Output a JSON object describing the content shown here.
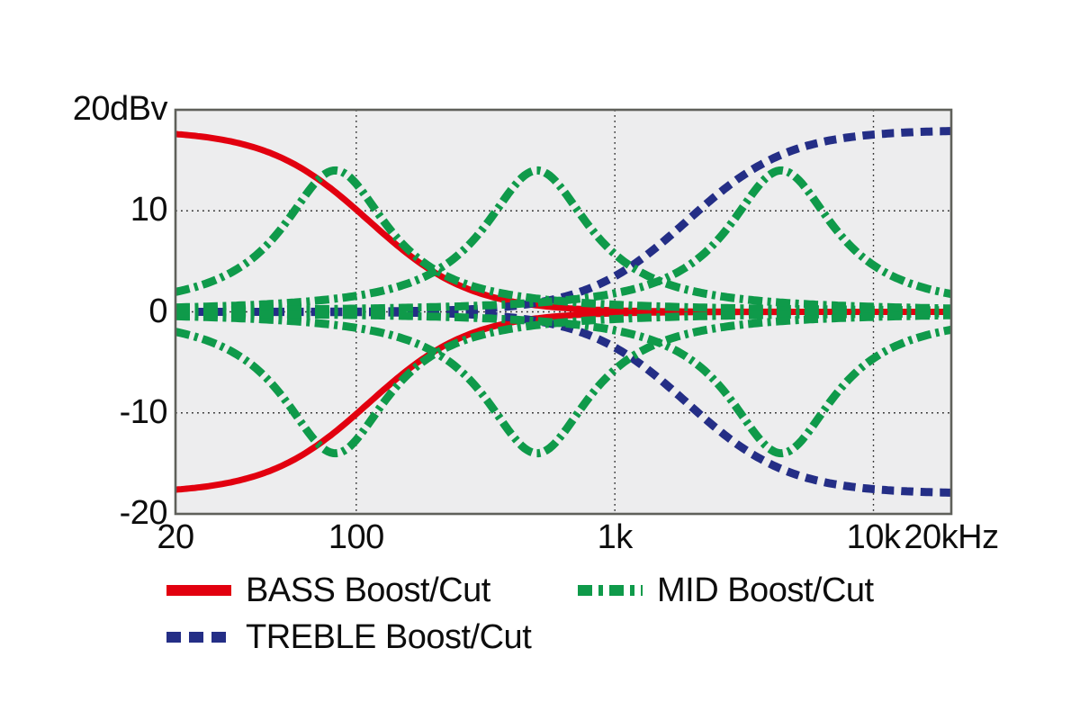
{
  "chart": {
    "background": "#ffffff",
    "plot_bg": "#ededee",
    "border_color": "#5f605a",
    "grid_color": "#2d2d2d",
    "accent_red": "#e2000f",
    "accent_green": "#0f9a4a",
    "accent_blue": "#242e86"
  },
  "chart_data": {
    "type": "line",
    "title": "",
    "x_axis": {
      "scale": "log",
      "min_hz": 20,
      "max_hz": 20000,
      "unit": "Hz",
      "ticks": [
        {
          "hz": 20,
          "label": "20"
        },
        {
          "hz": 100,
          "label": "100"
        },
        {
          "hz": 1000,
          "label": "1k"
        },
        {
          "hz": 10000,
          "label": "10k"
        },
        {
          "hz": 20000,
          "label": "20kHz"
        }
      ],
      "gridlines_hz": [
        100,
        1000,
        10000
      ]
    },
    "y_axis": {
      "min_db": -20,
      "max_db": 20,
      "unit": "dBv",
      "ticks": [
        {
          "db": 20,
          "label": "20dBv"
        },
        {
          "db": 10,
          "label": "10"
        },
        {
          "db": 0,
          "label": "0"
        },
        {
          "db": -10,
          "label": "-10"
        },
        {
          "db": -20,
          "label": "-20"
        }
      ],
      "gridlines_db": [
        10,
        0,
        -10
      ]
    },
    "legend": [
      {
        "id": "bass",
        "label": "BASS Boost/Cut",
        "color": "#e2000f",
        "style": "solid"
      },
      {
        "id": "mid",
        "label": "MID Boost/Cut",
        "color": "#0f9a4a",
        "style": "dashdot"
      },
      {
        "id": "treble",
        "label": "TREBLE Boost/Cut",
        "color": "#242e86",
        "style": "dashed"
      }
    ],
    "series": [
      {
        "name": "BASS Boost",
        "group": "bass",
        "color": "#e2000f",
        "style": "solid",
        "stroke_width": 7,
        "model": {
          "kind": "low_shelf",
          "gain_db": 18,
          "fc_hz": 112,
          "steepness": 2.2
        },
        "points_hz_db": [
          [
            20,
            17.6
          ],
          [
            50,
            15.4
          ],
          [
            100,
            10.1
          ],
          [
            150,
            6.2
          ],
          [
            200,
            3.9
          ],
          [
            300,
            1.9
          ],
          [
            500,
            0.7
          ],
          [
            1000,
            0.1
          ],
          [
            5000,
            0.0
          ],
          [
            20000,
            0.0
          ]
        ]
      },
      {
        "name": "BASS Cut",
        "group": "bass",
        "color": "#e2000f",
        "style": "solid",
        "stroke_width": 7,
        "model": {
          "kind": "low_shelf",
          "gain_db": -18,
          "fc_hz": 112,
          "steepness": 2.2
        },
        "points_hz_db": [
          [
            20,
            -17.6
          ],
          [
            50,
            -15.4
          ],
          [
            100,
            -10.1
          ],
          [
            150,
            -6.2
          ],
          [
            200,
            -3.9
          ],
          [
            300,
            -1.9
          ],
          [
            500,
            -0.7
          ],
          [
            1000,
            -0.1
          ],
          [
            5000,
            0.0
          ],
          [
            20000,
            0.0
          ]
        ]
      },
      {
        "name": "TREBLE Boost",
        "group": "treble",
        "color": "#242e86",
        "style": "dashed",
        "stroke_width": 9,
        "model": {
          "kind": "high_shelf",
          "gain_db": 18,
          "fc_hz": 1900,
          "steepness": 2.2
        },
        "points_hz_db": [
          [
            20,
            0.0
          ],
          [
            200,
            0.1
          ],
          [
            500,
            0.9
          ],
          [
            1000,
            3.5
          ],
          [
            2000,
            9.5
          ],
          [
            5000,
            16.1
          ],
          [
            10000,
            17.5
          ],
          [
            20000,
            17.9
          ]
        ]
      },
      {
        "name": "TREBLE Cut",
        "group": "treble",
        "color": "#242e86",
        "style": "dashed",
        "stroke_width": 9,
        "model": {
          "kind": "high_shelf",
          "gain_db": -18,
          "fc_hz": 1900,
          "steepness": 2.2
        },
        "points_hz_db": [
          [
            20,
            0.0
          ],
          [
            200,
            -0.1
          ],
          [
            500,
            -0.9
          ],
          [
            1000,
            -3.5
          ],
          [
            2000,
            -9.5
          ],
          [
            5000,
            -16.1
          ],
          [
            10000,
            -17.5
          ],
          [
            20000,
            -17.9
          ]
        ]
      },
      {
        "name": "MID Boost 80Hz",
        "group": "mid",
        "color": "#0f9a4a",
        "style": "dashdot",
        "stroke_width": 9,
        "model": {
          "kind": "bell",
          "gain_db": 14,
          "fc_hz": 83,
          "width_decades": 0.25
        },
        "points_hz_db": [
          [
            20,
            2.0
          ],
          [
            40,
            5.4
          ],
          [
            83,
            14.0
          ],
          [
            160,
            6.1
          ],
          [
            204,
            4.1
          ],
          [
            500,
            1.3
          ],
          [
            2000,
            0.4
          ],
          [
            20000,
            0.1
          ]
        ]
      },
      {
        "name": "MID Cut 80Hz",
        "group": "mid",
        "color": "#0f9a4a",
        "style": "dashdot",
        "stroke_width": 9,
        "model": {
          "kind": "bell",
          "gain_db": -14,
          "fc_hz": 83,
          "width_decades": 0.25
        },
        "points_hz_db": [
          [
            20,
            -2.0
          ],
          [
            40,
            -5.4
          ],
          [
            83,
            -14.0
          ],
          [
            160,
            -6.1
          ],
          [
            204,
            -4.1
          ],
          [
            500,
            -1.3
          ],
          [
            2000,
            -0.4
          ],
          [
            20000,
            -0.1
          ]
        ]
      },
      {
        "name": "MID Boost 500Hz",
        "group": "mid",
        "color": "#0f9a4a",
        "style": "dashdot",
        "stroke_width": 9,
        "model": {
          "kind": "bell",
          "gain_db": 14,
          "fc_hz": 500,
          "width_decades": 0.25
        },
        "points_hz_db": [
          [
            20,
            0.4
          ],
          [
            100,
            1.6
          ],
          [
            350,
            10.1
          ],
          [
            500,
            14.0
          ],
          [
            1000,
            5.7
          ],
          [
            1483,
            2.9
          ],
          [
            2000,
            2.1
          ],
          [
            20000,
            0.3
          ]
        ]
      },
      {
        "name": "MID Cut 500Hz",
        "group": "mid",
        "color": "#0f9a4a",
        "style": "dashdot",
        "stroke_width": 9,
        "model": {
          "kind": "bell",
          "gain_db": -14,
          "fc_hz": 500,
          "width_decades": 0.25
        },
        "points_hz_db": [
          [
            20,
            -0.4
          ],
          [
            100,
            -1.6
          ],
          [
            350,
            -10.1
          ],
          [
            500,
            -14.0
          ],
          [
            1000,
            -5.7
          ],
          [
            1483,
            -2.9
          ],
          [
            2000,
            -2.1
          ],
          [
            20000,
            -0.3
          ]
        ]
      },
      {
        "name": "MID Boost 4.4kHz",
        "group": "mid",
        "color": "#0f9a4a",
        "style": "dashdot",
        "stroke_width": 9,
        "model": {
          "kind": "bell",
          "gain_db": 14,
          "fc_hz": 4400,
          "width_decades": 0.25
        },
        "points_hz_db": [
          [
            20,
            0.2
          ],
          [
            500,
            0.9
          ],
          [
            1483,
            2.9
          ],
          [
            2000,
            4.9
          ],
          [
            4400,
            14.0
          ],
          [
            10000,
            4.6
          ],
          [
            20000,
            1.8
          ]
        ]
      },
      {
        "name": "MID Cut 4.4kHz",
        "group": "mid",
        "color": "#0f9a4a",
        "style": "dashdot",
        "stroke_width": 9,
        "model": {
          "kind": "bell",
          "gain_db": -14,
          "fc_hz": 4400,
          "width_decades": 0.25
        },
        "points_hz_db": [
          [
            20,
            -0.2
          ],
          [
            500,
            -0.9
          ],
          [
            1483,
            -2.9
          ],
          [
            2000,
            -4.9
          ],
          [
            4400,
            -14.0
          ],
          [
            10000,
            -4.6
          ],
          [
            20000,
            -1.8
          ]
        ]
      }
    ]
  }
}
